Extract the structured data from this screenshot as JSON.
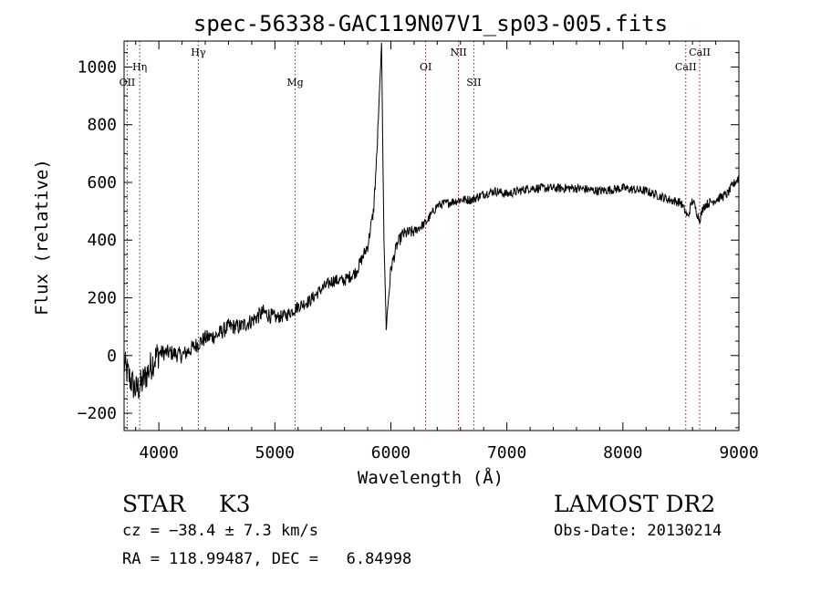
{
  "chart_data": {
    "type": "line",
    "title": "spec-56338-GAC119N07V1_sp03-005.fits",
    "xlabel": "Wavelength (Å)",
    "ylabel": "Flux (relative)",
    "xlim": [
      3700,
      9000
    ],
    "ylim": [
      -260,
      1090
    ],
    "xticks": [
      4000,
      5000,
      6000,
      7000,
      8000,
      9000
    ],
    "yticks": [
      -200,
      0,
      200,
      400,
      600,
      800,
      1000
    ],
    "grid": false,
    "series": [
      {
        "x": [
          3700,
          3750,
          3800,
          3850,
          3900,
          3950,
          4000,
          4100,
          4200,
          4300,
          4400,
          4500,
          4600,
          4700,
          4800,
          4900,
          5000,
          5100,
          5200,
          5300,
          5400,
          5500,
          5600,
          5700,
          5800,
          5850,
          5880,
          5900,
          5920,
          5940,
          5960,
          5980,
          6000,
          6050,
          6100,
          6200,
          6300,
          6400,
          6500,
          6600,
          6700,
          6800,
          6900,
          7000,
          7200,
          7400,
          7600,
          7800,
          8000,
          8200,
          8400,
          8500,
          8560,
          8600,
          8660,
          8700,
          8800,
          8900,
          9000
        ],
        "y": [
          -30,
          -80,
          -120,
          -100,
          -60,
          -20,
          10,
          10,
          0,
          30,
          60,
          70,
          100,
          100,
          120,
          150,
          130,
          140,
          170,
          190,
          230,
          260,
          260,
          290,
          380,
          500,
          700,
          900,
          1080,
          400,
          100,
          200,
          300,
          380,
          420,
          430,
          460,
          520,
          530,
          540,
          540,
          560,
          570,
          560,
          580,
          580,
          580,
          570,
          580,
          570,
          540,
          530,
          480,
          540,
          470,
          520,
          540,
          560,
          620
        ]
      }
    ],
    "line_markers": [
      {
        "label": "OII",
        "x": 3727,
        "row": "low"
      },
      {
        "label": "Hη",
        "x": 3835,
        "row": "mid"
      },
      {
        "label": "Hγ",
        "x": 4340,
        "row": "high"
      },
      {
        "label": "Mg",
        "x": 5175,
        "row": "low"
      },
      {
        "label": "OI",
        "x": 6300,
        "row": "mid"
      },
      {
        "label": "NII",
        "x": 6583,
        "row": "high"
      },
      {
        "label": "SII",
        "x": 6716,
        "row": "low"
      },
      {
        "label": "CaII",
        "x": 8542,
        "row": "mid"
      },
      {
        "label": "CaII",
        "x": 8662,
        "row": "high"
      }
    ]
  },
  "info": {
    "object_class": "STAR",
    "subclass": "K3",
    "survey": "LAMOST DR2",
    "cz": "cz = −38.4 ± 7.3 km/s",
    "obs_date": "Obs-Date: 20130214",
    "coords": "RA = 118.99487, DEC =   6.84998"
  }
}
